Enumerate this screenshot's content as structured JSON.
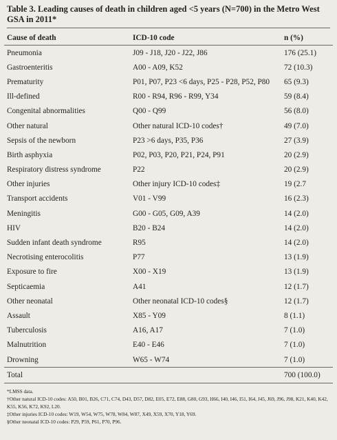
{
  "title": "Table 3. Leading causes of death in children aged <5 years (N=700) in the Metro West GSA in 2011*",
  "table": {
    "header": [
      "Cause of death",
      "ICD-10 code",
      "n (%)"
    ],
    "rows": [
      [
        "Pneumonia",
        "J09 - J18, J20 - J22, J86",
        "176 (25.1)"
      ],
      [
        "Gastroenteritis",
        "A00 - A09, K52",
        "72 (10.3)"
      ],
      [
        "Prematurity",
        "P01, P07, P23 <6 days, P25 - P28, P52, P80",
        "65 (9.3)"
      ],
      [
        "Ill-defined",
        "R00 - R94, R96 - R99, Y34",
        "59 (8.4)"
      ],
      [
        "Congenital abnormalities",
        "Q00 - Q99",
        "56 (8.0)"
      ],
      [
        "Other natural",
        "Other natural ICD-10 codes†",
        "49 (7.0)"
      ],
      [
        "Sepsis of the newborn",
        "P23 >6 days, P35, P36",
        "27 (3.9)"
      ],
      [
        "Birth asphyxia",
        "P02, P03, P20, P21, P24, P91",
        "20 (2.9)"
      ],
      [
        "Respiratory distress syndrome",
        "P22",
        "20 (2.9)"
      ],
      [
        "Other injuries",
        "Other injury ICD-10 codes‡",
        "19 (2.7"
      ],
      [
        "Transport accidents",
        "V01 - V99",
        "16 (2.3)"
      ],
      [
        "Meningitis",
        "G00 - G05, G09, A39",
        "14 (2.0)"
      ],
      [
        "HIV",
        "B20 - B24",
        "14 (2.0)"
      ],
      [
        "Sudden infant death syndrome",
        "R95",
        "14 (2.0)"
      ],
      [
        "Necrotising enterocolitis",
        "P77",
        "13 (1.9)"
      ],
      [
        "Exposure to fire",
        "X00 - X19",
        "13 (1.9)"
      ],
      [
        "Septicaemia",
        "A41",
        "12 (1.7)"
      ],
      [
        "Other neonatal",
        "Other neonatal ICD-10 codes§",
        "12 (1.7)"
      ],
      [
        "Assault",
        "X85 - Y09",
        "8 (1.1)"
      ],
      [
        "Tuberculosis",
        "A16, A17",
        "7 (1.0)"
      ],
      [
        "Malnutrition",
        "E40 - E46",
        "7 (1.0)"
      ],
      [
        "Drowning",
        "W65 - W74",
        "7 (1.0)"
      ]
    ],
    "total": [
      "Total",
      "700 (100.0)"
    ]
  },
  "footnotes": [
    "*LMSS data.",
    "†Other natural ICD-10 codes: A50, B01, B26, C71, C74, D43, D57, D82, E05, E72, E88, G80, G93, H66, I40, I46, I51, I64, J45, J69, J96, J98, K21, K40, K42, K55, K56, K72, K92, L20.",
    "‡Other injuries ICD-10 codes: W19, W54, W75, W78, W84, W87, X49, X59, X70, Y18, Y69.",
    "§Other neonatal ICD-10 codes: P29, P59, P61, P70, P96."
  ]
}
